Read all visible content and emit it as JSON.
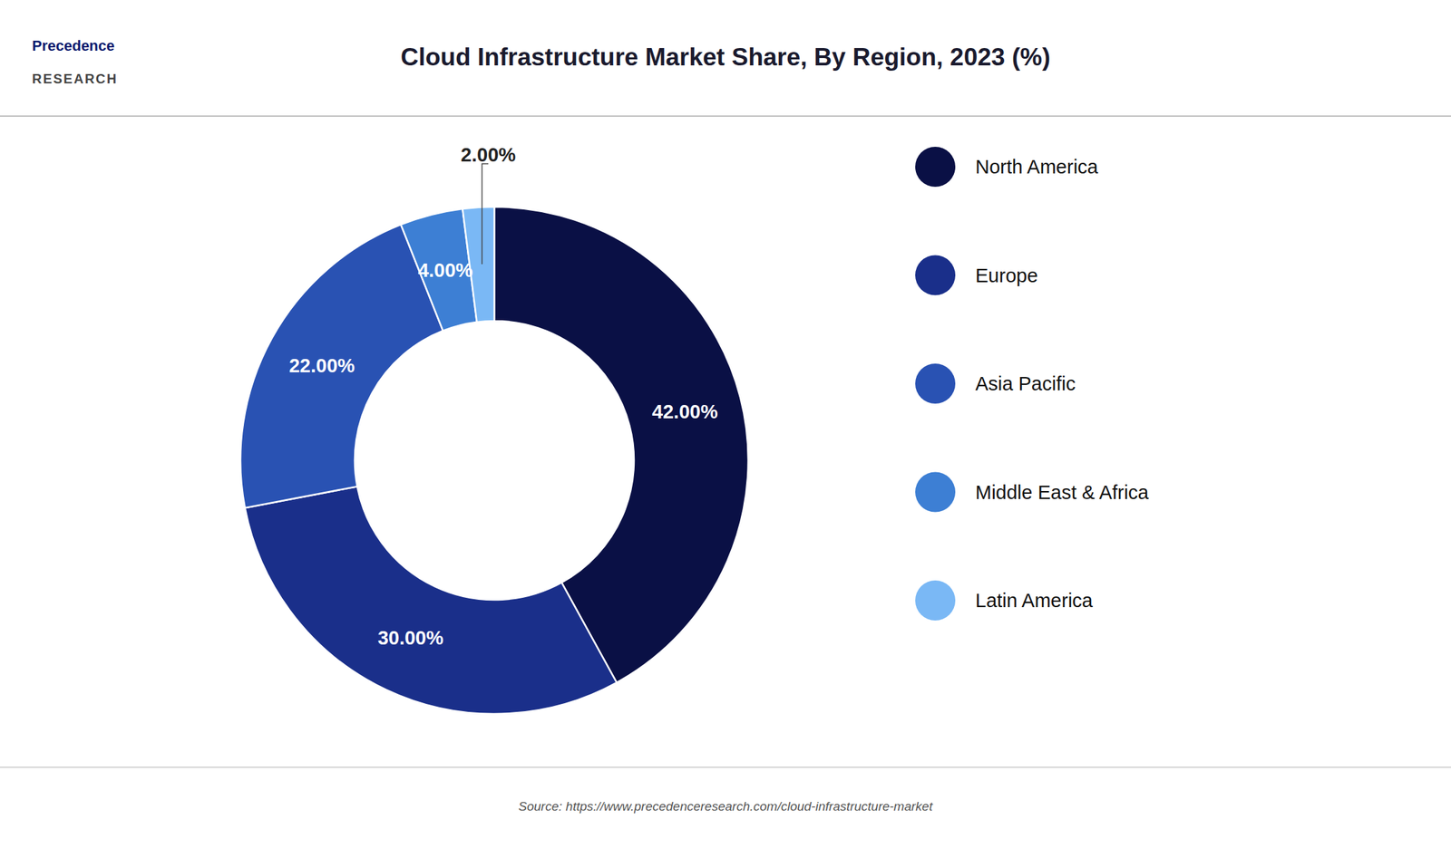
{
  "chart_data": {
    "type": "donut",
    "title": "Cloud Infrastructure Market Share, By Region, 2023 (%)",
    "categories": [
      "North America",
      "Europe",
      "Asia Pacific",
      "Middle East & Africa",
      "Latin America"
    ],
    "values": [
      42.0,
      30.0,
      22.0,
      4.0,
      2.0
    ],
    "value_labels": [
      "42.00%",
      "30.00%",
      "22.00%",
      "4.00%",
      "2.00%"
    ],
    "colors": [
      "#0a1045",
      "#1a2f8a",
      "#2952b3",
      "#3d7fd4",
      "#7ab8f5"
    ],
    "data_labels": true,
    "legend": "right",
    "annotations": [
      "Precedence",
      "RESEARCH"
    ],
    "source": "Source: https://www.precedenceresearch.com/cloud-infrastructure-market"
  }
}
